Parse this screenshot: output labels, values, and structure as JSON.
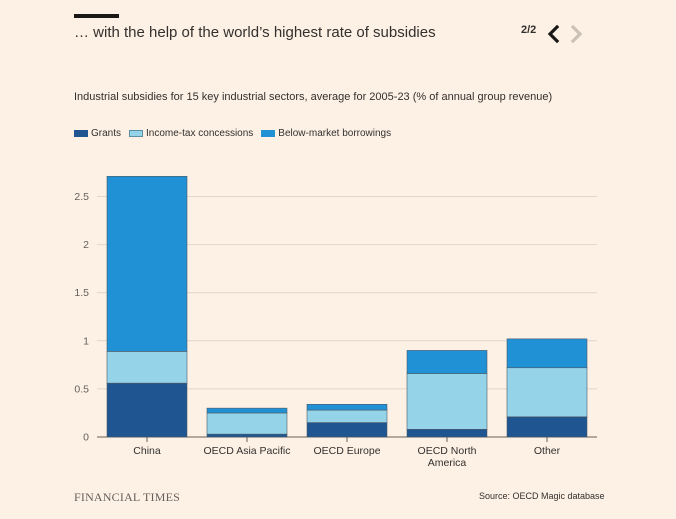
{
  "header": {
    "headline": "… with the help of the world’s highest rate of subsidies",
    "pager": "2/2"
  },
  "subtitle": "Industrial subsidies for 15 key industrial sectors, average for 2005-23 (% of annual group revenue)",
  "footer": {
    "brand": "FINANCIAL TIMES",
    "source": "Source: OECD Magic database"
  },
  "colors": {
    "background": "#fdf1e5",
    "grants": "#1f5590",
    "income_tax": "#95d3e8",
    "borrowings": "#2191d5"
  },
  "chart_data": {
    "type": "bar",
    "stacked": true,
    "categories": [
      "China",
      "OECD Asia Pacific",
      "OECD Europe",
      "OECD North America",
      "Other"
    ],
    "category_lines": [
      [
        "China"
      ],
      [
        "OECD Asia Pacific"
      ],
      [
        "OECD Europe"
      ],
      [
        "OECD North",
        "America"
      ],
      [
        "Other"
      ]
    ],
    "series": [
      {
        "name": "Grants",
        "values": [
          0.56,
          0.03,
          0.15,
          0.08,
          0.21
        ]
      },
      {
        "name": "Income-tax concessions",
        "values": [
          0.33,
          0.22,
          0.13,
          0.58,
          0.51
        ]
      },
      {
        "name": "Below-market borrowings",
        "values": [
          1.82,
          0.05,
          0.06,
          0.24,
          0.3
        ]
      }
    ],
    "yticks": [
      0,
      0.5,
      1,
      1.5,
      2,
      2.5
    ],
    "ytick_labels": [
      "0",
      "0.5",
      "1",
      "1.5",
      "2",
      "2.5"
    ],
    "ylim": [
      0,
      2.7
    ],
    "grid": true,
    "legend_position": "top-left"
  }
}
